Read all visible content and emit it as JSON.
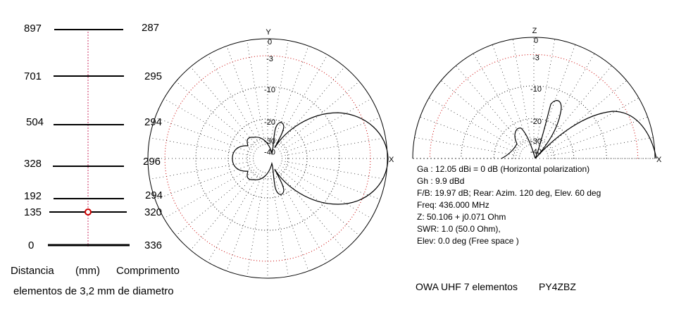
{
  "elements": [
    {
      "distance": "897",
      "length": "287"
    },
    {
      "distance": "701",
      "length": "295"
    },
    {
      "distance": "504",
      "length": "294"
    },
    {
      "distance": "328",
      "length": "296"
    },
    {
      "distance": "192",
      "length": "294"
    },
    {
      "distance": "135",
      "length": "320"
    },
    {
      "distance": "0",
      "length": "336"
    }
  ],
  "feed_element_index": 5,
  "left_labels": {
    "col_distance": "Distancia",
    "col_unit": "(mm)",
    "col_length": "Comprimento",
    "note": "elementos de 3,2 mm de diametro"
  },
  "azimuth_plot": {
    "axis_y": "Y",
    "axis_x": "X",
    "ring_labels": [
      "0",
      "-3",
      "-10",
      "-20",
      "-30",
      "-40"
    ]
  },
  "elevation_plot": {
    "axis_z": "Z",
    "axis_x": "X",
    "ring_labels": [
      "0",
      "-3",
      "-10",
      "-20",
      "-30",
      "-40"
    ]
  },
  "info": {
    "ga": "Ga : 12.05 dBi = 0 dB  (Horizontal polarization)",
    "gh": "Gh : 9.9 dBd",
    "fb": "F/B: 19.97 dB; Rear: Azim. 120 deg,  Elev. 60 deg",
    "freq": "Freq: 436.000 MHz",
    "z": "Z: 50.106 + j0.071 Ohm",
    "swr": "SWR: 1.0 (50.0 Ohm),",
    "elev": "Elev: 0.0 deg (Free space )"
  },
  "footer": {
    "title": "OWA UHF 7 elementos",
    "author": "PY4ZBZ"
  },
  "colors": {
    "line": "#000000",
    "reference_ring": "#cc0000",
    "boom_dash": "#cc3366",
    "grid": "#000000"
  }
}
